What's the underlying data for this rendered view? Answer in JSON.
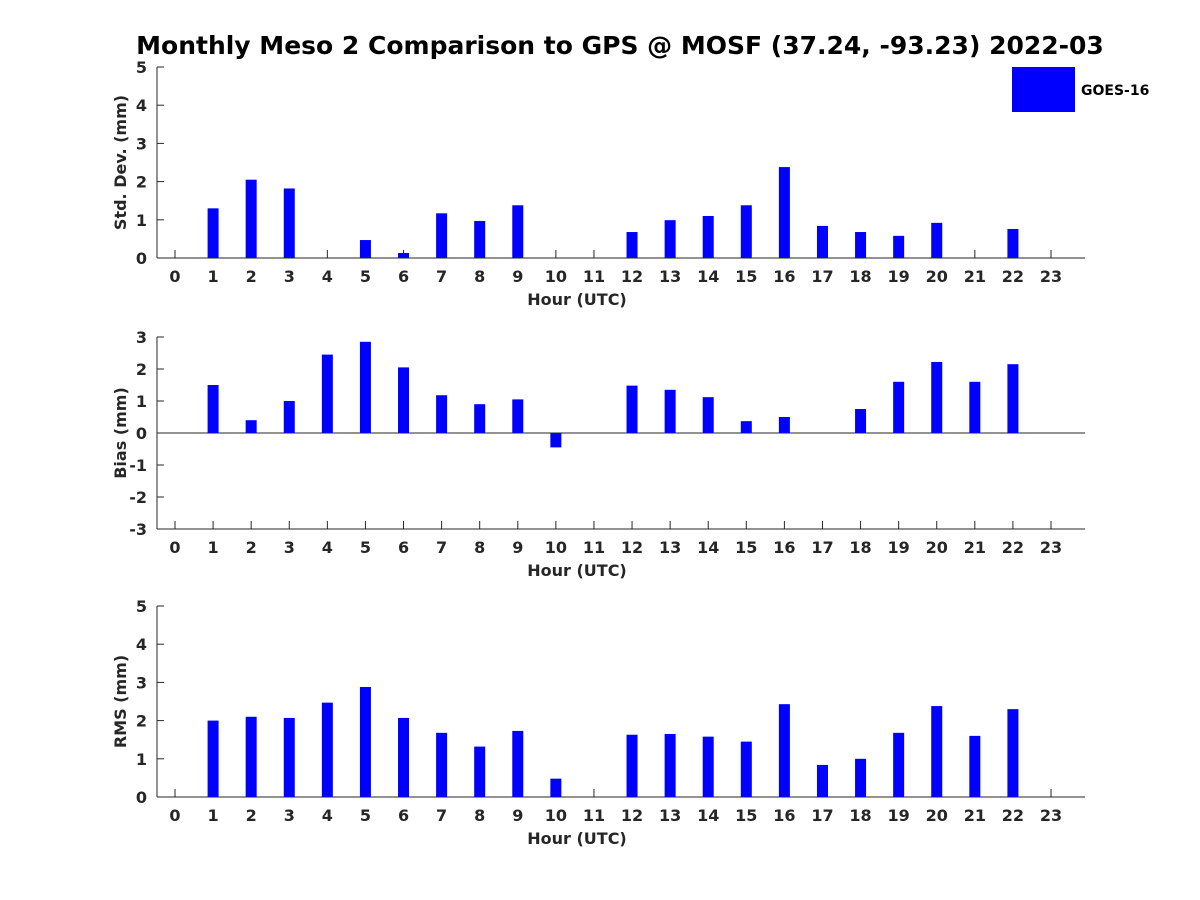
{
  "title": "Monthly Meso 2 Comparison to GPS @ MOSF (37.24, -93.23) 2022-03",
  "legend": {
    "label": "GOES-16",
    "color": "#0000ff"
  },
  "bar_color": "#0000ff",
  "chart_data": [
    {
      "type": "bar",
      "name": "std-dev",
      "series_name": "GOES-16",
      "xlabel": "Hour (UTC)",
      "ylabel": "Std. Dev. (mm)",
      "ylim": [
        0,
        5
      ],
      "yticks": [
        0,
        1,
        2,
        3,
        4,
        5
      ],
      "categories": [
        0,
        1,
        2,
        3,
        4,
        5,
        6,
        7,
        8,
        9,
        10,
        11,
        12,
        13,
        14,
        15,
        16,
        17,
        18,
        19,
        20,
        21,
        22,
        23
      ],
      "values": [
        null,
        1.3,
        2.05,
        1.82,
        null,
        0.47,
        0.13,
        1.17,
        0.97,
        1.38,
        null,
        null,
        0.68,
        0.99,
        1.1,
        1.38,
        2.38,
        0.84,
        0.68,
        0.58,
        0.92,
        null,
        0.76,
        null
      ]
    },
    {
      "type": "bar",
      "name": "bias",
      "series_name": "GOES-16",
      "xlabel": "Hour (UTC)",
      "ylabel": "Bias (mm)",
      "ylim": [
        -3,
        3
      ],
      "yticks": [
        -3,
        -2,
        -1,
        0,
        1,
        2,
        3
      ],
      "categories": [
        0,
        1,
        2,
        3,
        4,
        5,
        6,
        7,
        8,
        9,
        10,
        11,
        12,
        13,
        14,
        15,
        16,
        17,
        18,
        19,
        20,
        21,
        22,
        23
      ],
      "values": [
        null,
        1.5,
        0.4,
        1.0,
        2.45,
        2.85,
        2.05,
        1.18,
        0.9,
        1.05,
        -0.45,
        null,
        1.48,
        1.35,
        1.12,
        0.37,
        0.5,
        null,
        0.75,
        1.6,
        2.22,
        1.6,
        2.15,
        null
      ]
    },
    {
      "type": "bar",
      "name": "rms",
      "series_name": "GOES-16",
      "xlabel": "Hour (UTC)",
      "ylabel": "RMS (mm)",
      "ylim": [
        0,
        5
      ],
      "yticks": [
        0,
        1,
        2,
        3,
        4,
        5
      ],
      "categories": [
        0,
        1,
        2,
        3,
        4,
        5,
        6,
        7,
        8,
        9,
        10,
        11,
        12,
        13,
        14,
        15,
        16,
        17,
        18,
        19,
        20,
        21,
        22,
        23
      ],
      "values": [
        null,
        2.0,
        2.1,
        2.07,
        2.47,
        2.88,
        2.07,
        1.68,
        1.32,
        1.73,
        0.48,
        null,
        1.63,
        1.65,
        1.58,
        1.45,
        2.43,
        0.84,
        1.0,
        1.68,
        2.38,
        1.6,
        2.3,
        null
      ]
    }
  ]
}
